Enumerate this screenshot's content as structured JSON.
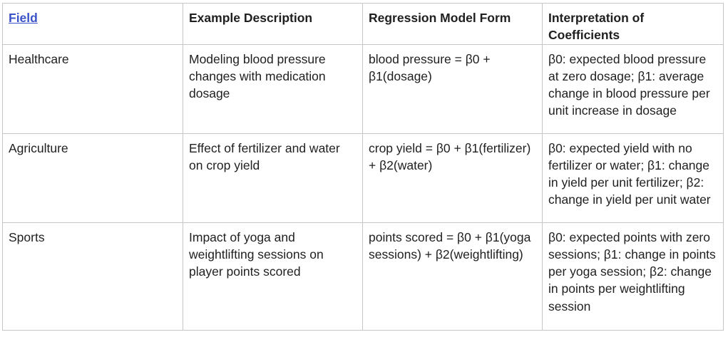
{
  "table": {
    "headers": [
      "Field",
      "Example Description",
      "Regression Model Form",
      "Interpretation of Coefficients"
    ],
    "rows": [
      [
        "Healthcare",
        "Modeling blood pressure changes with medication dosage",
        "blood pressure = β0 + β1(dosage)",
        "β0: expected blood pressure at zero dosage; β1: average change in blood pressure per unit increase in dosage"
      ],
      [
        "Agriculture",
        "Effect of fertilizer and water on crop yield",
        "crop yield = β0 + β1(fertilizer) + β2(water)",
        "β0: expected yield with no fertilizer or water; β1: change in yield per unit fertilizer; β2: change in yield per unit water"
      ],
      [
        "Sports",
        "Impact of yoga and weightlifting sessions on player points scored",
        "points scored = β0 + β1(yoga sessions) + β2(weightlifting)",
        "β0: expected points with zero sessions; β1: change in points per yoga session; β2: change in points per weightlifting session"
      ]
    ]
  },
  "colors": {
    "link": "#3b53c9",
    "border": "#c4c7c5",
    "text": "#1f1f1f"
  }
}
